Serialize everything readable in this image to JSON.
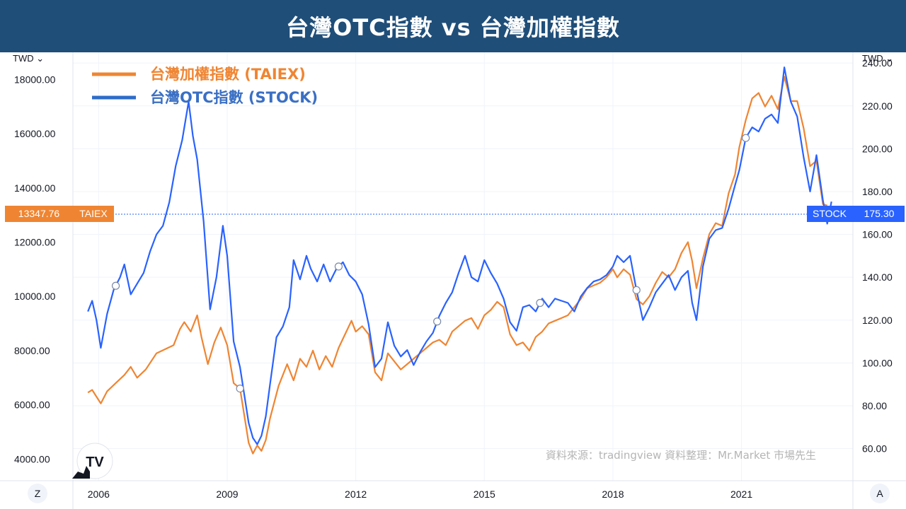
{
  "title": "台灣OTC指數 vs 台灣加權指數",
  "left_axis_unit": "TWD",
  "right_axis_unit": "TWD",
  "source_note": "資料來源：tradingview   資料整理：Mr.Market 市場先生",
  "left_price_tag": {
    "value": "13347.76",
    "label": "TAIEX"
  },
  "right_price_tag": {
    "value": "175.30",
    "label": "STOCK"
  },
  "buttons": {
    "left": "Z",
    "right": "A"
  },
  "colors": {
    "taiex": "#ef8532",
    "stock": "#2962ff",
    "title_bg": "#1f4e79"
  },
  "chart_data": {
    "type": "line",
    "x_ticks": [
      "2006",
      "2009",
      "2012",
      "2015",
      "2018",
      "2021"
    ],
    "x_range": [
      2005.4,
      2023.6
    ],
    "left_ticks": [
      "4000.00",
      "6000.00",
      "8000.00",
      "10000.00",
      "12000.00",
      "14000.00",
      "16000.00",
      "18000.00"
    ],
    "left_range": [
      3200,
      19000
    ],
    "right_ticks": [
      "60.00",
      "80.00",
      "100.00",
      "120.00",
      "140.00",
      "160.00",
      "180.00",
      "200.00",
      "220.00",
      "240.00"
    ],
    "right_range": [
      45,
      245
    ],
    "series": [
      {
        "name": "台灣加權指數 (TAIEX)",
        "axis": "left",
        "color": "#ef8532",
        "points": [
          [
            2005.75,
            6450
          ],
          [
            2005.85,
            6550
          ],
          [
            2005.95,
            6300
          ],
          [
            2006.05,
            6050
          ],
          [
            2006.2,
            6500
          ],
          [
            2006.4,
            6800
          ],
          [
            2006.6,
            7100
          ],
          [
            2006.75,
            7400
          ],
          [
            2006.9,
            7000
          ],
          [
            2007.1,
            7300
          ],
          [
            2007.35,
            7900
          ],
          [
            2007.55,
            8050
          ],
          [
            2007.75,
            8200
          ],
          [
            2007.9,
            8800
          ],
          [
            2008.0,
            9050
          ],
          [
            2008.15,
            8700
          ],
          [
            2008.3,
            9300
          ],
          [
            2008.4,
            8500
          ],
          [
            2008.55,
            7500
          ],
          [
            2008.7,
            8300
          ],
          [
            2008.85,
            8850
          ],
          [
            2009.0,
            8200
          ],
          [
            2009.15,
            6800
          ],
          [
            2009.3,
            6600
          ],
          [
            2009.4,
            5600
          ],
          [
            2009.5,
            4600
          ],
          [
            2009.6,
            4200
          ],
          [
            2009.7,
            4500
          ],
          [
            2009.8,
            4300
          ],
          [
            2009.9,
            4700
          ],
          [
            2010.0,
            5500
          ],
          [
            2010.2,
            6700
          ],
          [
            2010.4,
            7500
          ],
          [
            2010.55,
            6900
          ],
          [
            2010.7,
            7700
          ],
          [
            2010.85,
            7400
          ],
          [
            2011.0,
            8000
          ],
          [
            2011.15,
            7300
          ],
          [
            2011.3,
            7800
          ],
          [
            2011.45,
            7400
          ],
          [
            2011.6,
            8100
          ],
          [
            2011.75,
            8600
          ],
          [
            2011.9,
            9100
          ],
          [
            2012.0,
            8700
          ],
          [
            2012.15,
            8900
          ],
          [
            2012.3,
            8600
          ],
          [
            2012.45,
            7200
          ],
          [
            2012.6,
            6900
          ],
          [
            2012.75,
            7900
          ],
          [
            2012.9,
            7600
          ],
          [
            2013.05,
            7300
          ],
          [
            2013.2,
            7500
          ],
          [
            2013.35,
            7700
          ],
          [
            2013.5,
            7900
          ],
          [
            2013.65,
            8100
          ],
          [
            2013.8,
            8300
          ],
          [
            2013.95,
            8400
          ],
          [
            2014.1,
            8200
          ],
          [
            2014.25,
            8700
          ],
          [
            2014.4,
            8900
          ],
          [
            2014.55,
            9100
          ],
          [
            2014.7,
            9200
          ],
          [
            2014.85,
            8800
          ],
          [
            2015.0,
            9300
          ],
          [
            2015.15,
            9500
          ],
          [
            2015.3,
            9800
          ],
          [
            2015.45,
            9600
          ],
          [
            2015.6,
            8600
          ],
          [
            2015.75,
            8200
          ],
          [
            2015.9,
            8300
          ],
          [
            2016.05,
            8000
          ],
          [
            2016.2,
            8500
          ],
          [
            2016.35,
            8700
          ],
          [
            2016.5,
            9000
          ],
          [
            2016.65,
            9100
          ],
          [
            2016.8,
            9200
          ],
          [
            2016.95,
            9300
          ],
          [
            2017.1,
            9600
          ],
          [
            2017.25,
            9900
          ],
          [
            2017.4,
            10300
          ],
          [
            2017.55,
            10400
          ],
          [
            2017.7,
            10500
          ],
          [
            2017.85,
            10700
          ],
          [
            2018.0,
            11000
          ],
          [
            2018.1,
            10700
          ],
          [
            2018.25,
            11000
          ],
          [
            2018.4,
            10800
          ],
          [
            2018.55,
            9900
          ],
          [
            2018.7,
            9700
          ],
          [
            2018.85,
            10000
          ],
          [
            2019.0,
            10500
          ],
          [
            2019.15,
            10900
          ],
          [
            2019.3,
            10700
          ],
          [
            2019.45,
            11000
          ],
          [
            2019.6,
            11600
          ],
          [
            2019.75,
            12000
          ],
          [
            2019.85,
            11300
          ],
          [
            2019.95,
            10300
          ],
          [
            2020.1,
            11400
          ],
          [
            2020.25,
            12300
          ],
          [
            2020.4,
            12700
          ],
          [
            2020.55,
            12600
          ],
          [
            2020.7,
            13800
          ],
          [
            2020.85,
            14500
          ],
          [
            2020.95,
            15500
          ],
          [
            2021.1,
            16500
          ],
          [
            2021.25,
            17300
          ],
          [
            2021.4,
            17500
          ],
          [
            2021.55,
            17000
          ],
          [
            2021.7,
            17400
          ],
          [
            2021.85,
            16900
          ],
          [
            2022.0,
            18100
          ],
          [
            2022.15,
            17200
          ],
          [
            2022.3,
            17200
          ],
          [
            2022.45,
            16200
          ],
          [
            2022.6,
            14800
          ],
          [
            2022.75,
            15000
          ],
          [
            2022.9,
            13400
          ],
          [
            2023.0,
            13347.76
          ]
        ]
      },
      {
        "name": "台灣OTC指數 (STOCK)",
        "axis": "right",
        "color": "#2962ff",
        "points": [
          [
            2005.75,
            124
          ],
          [
            2005.85,
            129
          ],
          [
            2005.95,
            120
          ],
          [
            2006.05,
            107
          ],
          [
            2006.2,
            123
          ],
          [
            2006.35,
            134
          ],
          [
            2006.5,
            140
          ],
          [
            2006.6,
            146
          ],
          [
            2006.75,
            132
          ],
          [
            2006.9,
            137
          ],
          [
            2007.05,
            142
          ],
          [
            2007.2,
            152
          ],
          [
            2007.35,
            160
          ],
          [
            2007.5,
            164
          ],
          [
            2007.65,
            175
          ],
          [
            2007.8,
            192
          ],
          [
            2007.95,
            204
          ],
          [
            2008.1,
            222
          ],
          [
            2008.2,
            206
          ],
          [
            2008.3,
            195
          ],
          [
            2008.45,
            166
          ],
          [
            2008.6,
            125
          ],
          [
            2008.75,
            140
          ],
          [
            2008.9,
            164
          ],
          [
            2009.0,
            150
          ],
          [
            2009.15,
            110
          ],
          [
            2009.3,
            98
          ],
          [
            2009.4,
            85
          ],
          [
            2009.5,
            72
          ],
          [
            2009.6,
            65
          ],
          [
            2009.7,
            62
          ],
          [
            2009.8,
            66
          ],
          [
            2009.9,
            75
          ],
          [
            2010.0,
            90
          ],
          [
            2010.15,
            112
          ],
          [
            2010.3,
            117
          ],
          [
            2010.45,
            126
          ],
          [
            2010.55,
            148
          ],
          [
            2010.7,
            139
          ],
          [
            2010.85,
            150
          ],
          [
            2010.95,
            144
          ],
          [
            2011.1,
            138
          ],
          [
            2011.25,
            146
          ],
          [
            2011.4,
            138
          ],
          [
            2011.55,
            144
          ],
          [
            2011.7,
            147
          ],
          [
            2011.85,
            141
          ],
          [
            2012.0,
            138
          ],
          [
            2012.15,
            132
          ],
          [
            2012.3,
            118
          ],
          [
            2012.45,
            98
          ],
          [
            2012.6,
            102
          ],
          [
            2012.75,
            119
          ],
          [
            2012.9,
            108
          ],
          [
            2013.05,
            103
          ],
          [
            2013.2,
            106
          ],
          [
            2013.35,
            99
          ],
          [
            2013.5,
            105
          ],
          [
            2013.65,
            110
          ],
          [
            2013.8,
            114
          ],
          [
            2013.95,
            122
          ],
          [
            2014.1,
            128
          ],
          [
            2014.25,
            133
          ],
          [
            2014.4,
            142
          ],
          [
            2014.55,
            150
          ],
          [
            2014.7,
            140
          ],
          [
            2014.85,
            138
          ],
          [
            2015.0,
            148
          ],
          [
            2015.15,
            142
          ],
          [
            2015.3,
            137
          ],
          [
            2015.45,
            130
          ],
          [
            2015.6,
            119
          ],
          [
            2015.75,
            115
          ],
          [
            2015.9,
            126
          ],
          [
            2016.05,
            127
          ],
          [
            2016.2,
            124
          ],
          [
            2016.35,
            130
          ],
          [
            2016.5,
            126
          ],
          [
            2016.65,
            130
          ],
          [
            2016.8,
            129
          ],
          [
            2016.95,
            128
          ],
          [
            2017.1,
            124
          ],
          [
            2017.25,
            131
          ],
          [
            2017.4,
            135
          ],
          [
            2017.55,
            138
          ],
          [
            2017.7,
            139
          ],
          [
            2017.85,
            141
          ],
          [
            2018.0,
            145
          ],
          [
            2018.1,
            150
          ],
          [
            2018.25,
            147
          ],
          [
            2018.4,
            150
          ],
          [
            2018.55,
            134
          ],
          [
            2018.7,
            120
          ],
          [
            2018.85,
            126
          ],
          [
            2019.0,
            133
          ],
          [
            2019.15,
            137
          ],
          [
            2019.3,
            141
          ],
          [
            2019.45,
            134
          ],
          [
            2019.6,
            140
          ],
          [
            2019.75,
            143
          ],
          [
            2019.85,
            128
          ],
          [
            2019.95,
            120
          ],
          [
            2020.1,
            145
          ],
          [
            2020.25,
            158
          ],
          [
            2020.4,
            162
          ],
          [
            2020.55,
            163
          ],
          [
            2020.7,
            172
          ],
          [
            2020.85,
            183
          ],
          [
            2020.95,
            190
          ],
          [
            2021.1,
            205
          ],
          [
            2021.25,
            210
          ],
          [
            2021.4,
            208
          ],
          [
            2021.55,
            214
          ],
          [
            2021.7,
            216
          ],
          [
            2021.85,
            212
          ],
          [
            2022.0,
            238
          ],
          [
            2022.15,
            222
          ],
          [
            2022.3,
            215
          ],
          [
            2022.45,
            196
          ],
          [
            2022.6,
            180
          ],
          [
            2022.75,
            197
          ],
          [
            2022.9,
            176
          ],
          [
            2023.0,
            165
          ],
          [
            2023.1,
            175.3
          ]
        ]
      }
    ],
    "markers": [
      {
        "series": 1,
        "x": 2006.4
      },
      {
        "series": 0,
        "x": 2009.3
      },
      {
        "series": 1,
        "x": 2011.6
      },
      {
        "series": 1,
        "x": 2013.9
      },
      {
        "series": 1,
        "x": 2016.3
      },
      {
        "series": 1,
        "x": 2018.55
      },
      {
        "series": 1,
        "x": 2021.1
      }
    ]
  }
}
